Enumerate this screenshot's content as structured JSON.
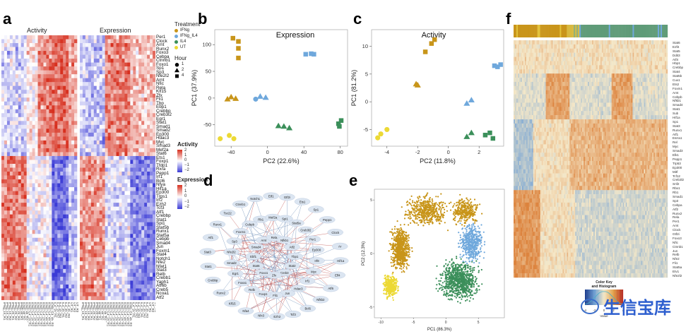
{
  "panels": {
    "a": {
      "label": "a",
      "activity_title": "Activity",
      "expression_title": "Expression",
      "genes": [
        "Per1",
        "Clock",
        "Arnt",
        "Runx2",
        "Foxo3",
        "Cebpa",
        "Ctnnb1",
        "Foxo1",
        "Sp1",
        "Sp3",
        "Nfe2l2",
        "Arnt",
        "Nfic",
        "Rela",
        "Klf15",
        "Zfx",
        "Fli1",
        "Tbp",
        "Ebp1",
        "Crebbp",
        "Creb3l2",
        "Egr1",
        "Stat1",
        "Smad1",
        "Smad2",
        "Ep300",
        "Hdac3",
        "Myc",
        "Smad3",
        "Mef2a",
        "Stat6",
        "Ets1",
        "Foxp1",
        "Tfdp1",
        "Rxra",
        "Pepp1",
        "Irf1",
        "Bcl6",
        "Nfya",
        "Hif1a",
        "Ep300",
        "Trps1",
        "Irf2",
        "Ezh2",
        "Tcf3",
        "Atf1",
        "Crebbp",
        "Stat1",
        "Spi1",
        "Stat5b",
        "Runx1",
        "Stat5a",
        "Cebpb",
        "Smad4",
        "Jun",
        "Foxm1",
        "Stat4",
        "Notch1",
        "Nfe2",
        "Nfat1",
        "Stat3",
        "Relb",
        "Crebb1",
        "Yaph1",
        "Atf6b",
        "Creb5",
        "Ncoa1",
        "Atf2"
      ],
      "columns": [
        "IFNg_1h_R1",
        "IFNg_1h_R2",
        "IFNg_1h_R3",
        "IFNg_2h_R1",
        "IFNg_2h_R2",
        "IFNg_2h_R3",
        "IFNg_4h_R1",
        "IFNg_4h_R2",
        "IFNg_4h_R3",
        "IFNg_IL4_1h_R1",
        "IFNg_IL4_1h_R2",
        "IFNg_IL4_1h_R3",
        "IFNg_IL4_2h_R1",
        "IFNg_IL4_2h_R2",
        "IFNg_IL4_2h_R3",
        "IFNg_IL4_4h_R1",
        "IFNg_IL4_4h_R2",
        "IFNg_IL4_4h_R3",
        "IL4_1h_R1",
        "IL4_1h_R2",
        "IL4_1h_R3",
        "IL4_2h_R1",
        "IL4_2h_R2",
        "IL4_2h_R3",
        "UT_R1",
        "UT_R2",
        "UT_R3"
      ],
      "legend_activity_title": "Activity",
      "legend_activity_ticks": [
        "2",
        "1",
        "0",
        "−1",
        "−2"
      ],
      "legend_expression_title": "Expression",
      "legend_expression_ticks": [
        "2",
        "1",
        "0",
        "−1",
        "−2"
      ],
      "colors": {
        "high": "#d7301f",
        "mid": "#ffffff",
        "low": "#3b3bd6"
      }
    },
    "b": {
      "label": "b",
      "title": "Expression",
      "xlabel": "PC2 (22.6%)",
      "ylabel": "PC1 (37.9%)",
      "treatment_title": "Treatment",
      "treatments": [
        {
          "name": "IFNg",
          "color": "#c8951a"
        },
        {
          "name": "IFNg_IL4",
          "color": "#6fa8dc"
        },
        {
          "name": "IL4",
          "color": "#3b8f5a"
        },
        {
          "name": "UT",
          "color": "#ecd935"
        }
      ],
      "hour_title": "Hour",
      "hours": [
        {
          "name": "1",
          "shape": "circle"
        },
        {
          "name": "2",
          "shape": "triangle"
        },
        {
          "name": "4",
          "shape": "square"
        }
      ]
    },
    "c": {
      "label": "c",
      "title": "Activity",
      "xlabel": "PC2 (11.8%)",
      "ylabel": "PC1 (81.2%)"
    },
    "d": {
      "label": "d",
      "nodes": [
        "Tbp1",
        "Stat2",
        "Creb3",
        "Zfx",
        "Foxo1",
        "Stat6",
        "Ebf1",
        "Smad4",
        "Arnt",
        "Rela",
        "Nfkb1",
        "Atf2",
        "Myc",
        "Irf1",
        "Hdac3",
        "Jun",
        "Fli1",
        "Foxp1",
        "Relb",
        "Foxa1",
        "Egr1",
        "Smad2",
        "Nfe2l2",
        "Sp3",
        "Foxm1",
        "Cebpb",
        "Rb1",
        "Mef2a",
        "Spi1",
        "Stat5a",
        "Creb3l2",
        "Per1",
        "Ep300",
        "Irf8",
        "Nfkb2",
        "Bcl6",
        "Tcf3",
        "Ezh2",
        "Nfx3",
        "Nfa4",
        "Klf15",
        "Runx2",
        "Crebbp",
        "Stat1",
        "Stat3",
        "Atf1",
        "Runx1",
        "Tsc22",
        "Ctnnb1",
        "Notch1",
        "Etf1",
        "Gtf2i",
        "Ets1",
        "Sp1",
        "Pepp1",
        "Clock",
        "Ar",
        "Hif1a",
        "Elf4",
        "Atf6"
      ]
    },
    "e": {
      "label": "e",
      "xlabel": "PC1 (86.3%)",
      "ylabel": "PC2 (12.3%)"
    },
    "f": {
      "label": "f",
      "genes": [
        "Stat6",
        "E2f4",
        "Stat5",
        "Ddit3",
        "Atf4",
        "Hbp1",
        "Crebbp",
        "Stat4",
        "Stat5b",
        "Cux1",
        "Ets2",
        "Foxm1",
        "Arnt",
        "Cebpb",
        "Nfkb1",
        "Smad4",
        "Stat1",
        "Sub",
        "Hif1a",
        "Sp1",
        "Stat3",
        "Runx1",
        "Atf1",
        "Esrra1",
        "Rel",
        "Myc",
        "Smad3",
        "Elk1",
        "Pepp1",
        "Trp53",
        "Ep300",
        "Mitf",
        "Tcf12",
        "Creb3l2",
        "Snf2",
        "Rbx1",
        "Rb1",
        "Smad1",
        "Sp3",
        "Cebpa",
        "Atf2",
        "Runx2",
        "Rela",
        "Per1",
        "Arnt",
        "Clock",
        "Gtf2i",
        "Foxo3",
        "Nfic",
        "Ctnnb1",
        "Jun",
        "Relb",
        "Nfe2",
        "Fli1",
        "Stat5a",
        "Etv1",
        "Nfe2l2"
      ],
      "color_key_title": "Color Key",
      "color_key_subtitle": "and Histogram",
      "color_key_ticks": [
        "-4",
        "-2",
        "0",
        "2",
        "4"
      ],
      "color_key_xlabel": "Value"
    }
  },
  "watermark": "生信宝库"
}
